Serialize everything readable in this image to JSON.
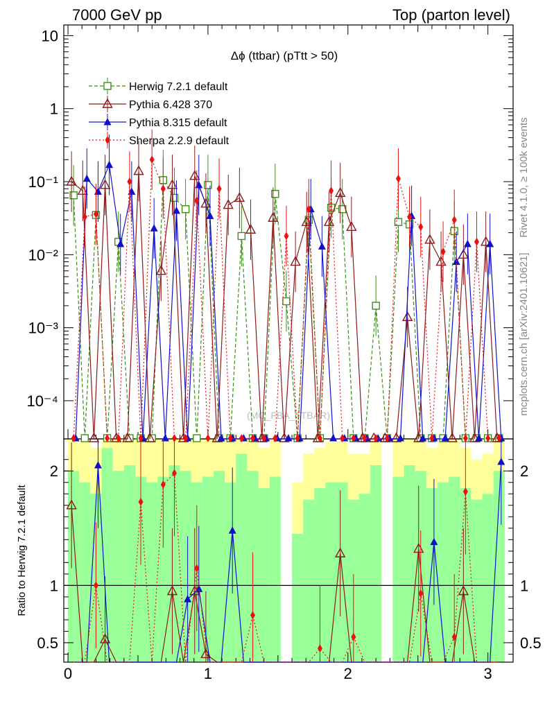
{
  "header": {
    "left": "7000 GeV pp",
    "right": "Top (parton level)"
  },
  "side_text": {
    "rivet": "Rivet 4.1.0, ≥ 100k events",
    "mcplots": "mcplots.cern.ch [arXiv:2401.10621]"
  },
  "watermark": "(MC_FBA_TTBAR)",
  "colors": {
    "herwig": "#3a8f1a",
    "pythia6": "#8b1a1a",
    "pythia8": "#1010cc",
    "sherpa": "#ee1010",
    "band_yellow": "#ffff99",
    "band_green": "#99ff99"
  },
  "chart_data": {
    "type": "line",
    "title": "Δϕ (ttbar) (pTtt > 50)",
    "xlabel": "",
    "ylabel": "",
    "xlim": [
      -0.03,
      3.18
    ],
    "ylim": [
      3e-05,
      14
    ],
    "yscale": "log",
    "xticks": [
      "0",
      "1",
      "2",
      "3"
    ],
    "yticks": [
      "10⁻⁴",
      "10⁻³",
      "10⁻²",
      "10⁻¹",
      "1",
      "10"
    ],
    "legend_position": "top-left",
    "ratio_ylabel": "Ratio to Herwig 7.2.1 default",
    "ratio_ylim": [
      0.33,
      2.28
    ],
    "ratio_yticks": [
      "0.5",
      "1",
      "2"
    ],
    "x": [
      0.04,
      0.12,
      0.2,
      0.28,
      0.36,
      0.44,
      0.52,
      0.6,
      0.68,
      0.76,
      0.84,
      0.92,
      1.0,
      1.08,
      1.16,
      1.24,
      1.32,
      1.4,
      1.48,
      1.56,
      1.64,
      1.72,
      1.8,
      1.88,
      1.96,
      2.04,
      2.12,
      2.2,
      2.28,
      2.36,
      2.44,
      2.52,
      2.6,
      2.68,
      2.76,
      2.84,
      2.92,
      3.0,
      3.08
    ],
    "series": [
      {
        "name": "Herwig 7.2.1 default",
        "marker": "open-square",
        "style": "dashed",
        "values": [
          0.065,
          0,
          0.035,
          0,
          0.015,
          0,
          0,
          0,
          0.105,
          0.06,
          0.042,
          0,
          0.09,
          0,
          0,
          0.018,
          0,
          0,
          0.068,
          0.0023,
          0,
          0.03,
          0,
          0.044,
          0.042,
          0,
          0,
          0.002,
          0,
          0.028,
          0.026,
          0,
          0,
          0,
          0.021,
          0,
          0,
          0,
          0
        ]
      },
      {
        "name": "Pythia 6.428 370",
        "marker": "open-triangle",
        "style": "solid",
        "values": [
          0.1,
          0.075,
          0,
          0.09,
          0,
          0,
          0.14,
          0,
          0.006,
          0.09,
          0,
          0.12,
          0.05,
          0,
          0.048,
          0.06,
          0.022,
          0,
          0.032,
          0,
          0.008,
          0.028,
          0,
          0.028,
          0.07,
          0.024,
          0,
          0,
          0,
          0,
          0.0014,
          0,
          0.016,
          0.008,
          0,
          0.01,
          0,
          0.015,
          0
        ]
      },
      {
        "name": "Pythia 8.315 default",
        "marker": "filled-triangle",
        "style": "solid",
        "values": [
          0,
          0.11,
          0.073,
          0.17,
          0.014,
          0.073,
          0,
          0.023,
          0,
          0.04,
          0,
          0.09,
          0.034,
          0,
          0,
          0,
          0,
          0,
          0,
          0,
          0,
          0.042,
          0.013,
          0,
          0,
          0,
          0,
          0,
          0,
          0,
          0.034,
          0,
          0,
          0,
          0.008,
          0.014,
          0,
          0.014,
          0
        ]
      },
      {
        "name": "Sherpa 2.2.9 default",
        "marker": "filled-diamond",
        "style": "dotted",
        "values": [
          0,
          0.033,
          0.036,
          0,
          0,
          0.1,
          0,
          0.2,
          0.08,
          0,
          0,
          0.055,
          0,
          0.08,
          0,
          0,
          0,
          0,
          0,
          0.018,
          0,
          0.042,
          0,
          0.075,
          0,
          0,
          0,
          0,
          0,
          0.11,
          0.033,
          0.024,
          0,
          0.011,
          0.03,
          0,
          0.015,
          0,
          0
        ]
      }
    ],
    "ratio_series": [
      {
        "name": "Pythia 6.428 370",
        "values": [
          1.7,
          0,
          0,
          0.53,
          0,
          0,
          0,
          0,
          0,
          0.95,
          0,
          0.95,
          0.4,
          0,
          0,
          0,
          0,
          0,
          0,
          0,
          0,
          0,
          0,
          0,
          1.28,
          0,
          0,
          0,
          0,
          0,
          0,
          1.32,
          0,
          0,
          0,
          0.95,
          0,
          0,
          0
        ]
      },
      {
        "name": "Pythia 8.315 default",
        "values": [
          0,
          0,
          2.05,
          0,
          0,
          0,
          0,
          0,
          0,
          0,
          0.88,
          0.97,
          0,
          0,
          1.48,
          0,
          0,
          0,
          0,
          0,
          0,
          0,
          0,
          0,
          0,
          0,
          0,
          0,
          0,
          0,
          0,
          0,
          1.38,
          0,
          0,
          0,
          0,
          0,
          2.08
        ]
      },
      {
        "name": "Sherpa 2.2.9 default",
        "values": [
          0,
          0,
          1.0,
          0,
          0,
          0,
          1.73,
          0,
          1.88,
          1.98,
          0,
          1.15,
          0,
          0,
          0,
          0,
          0.74,
          0,
          0,
          0,
          0,
          0,
          0.45,
          0,
          0,
          0.55,
          0,
          0,
          0,
          0,
          0,
          0.93,
          0,
          0,
          0.55,
          1.82,
          0,
          0,
          0
        ]
      }
    ]
  }
}
